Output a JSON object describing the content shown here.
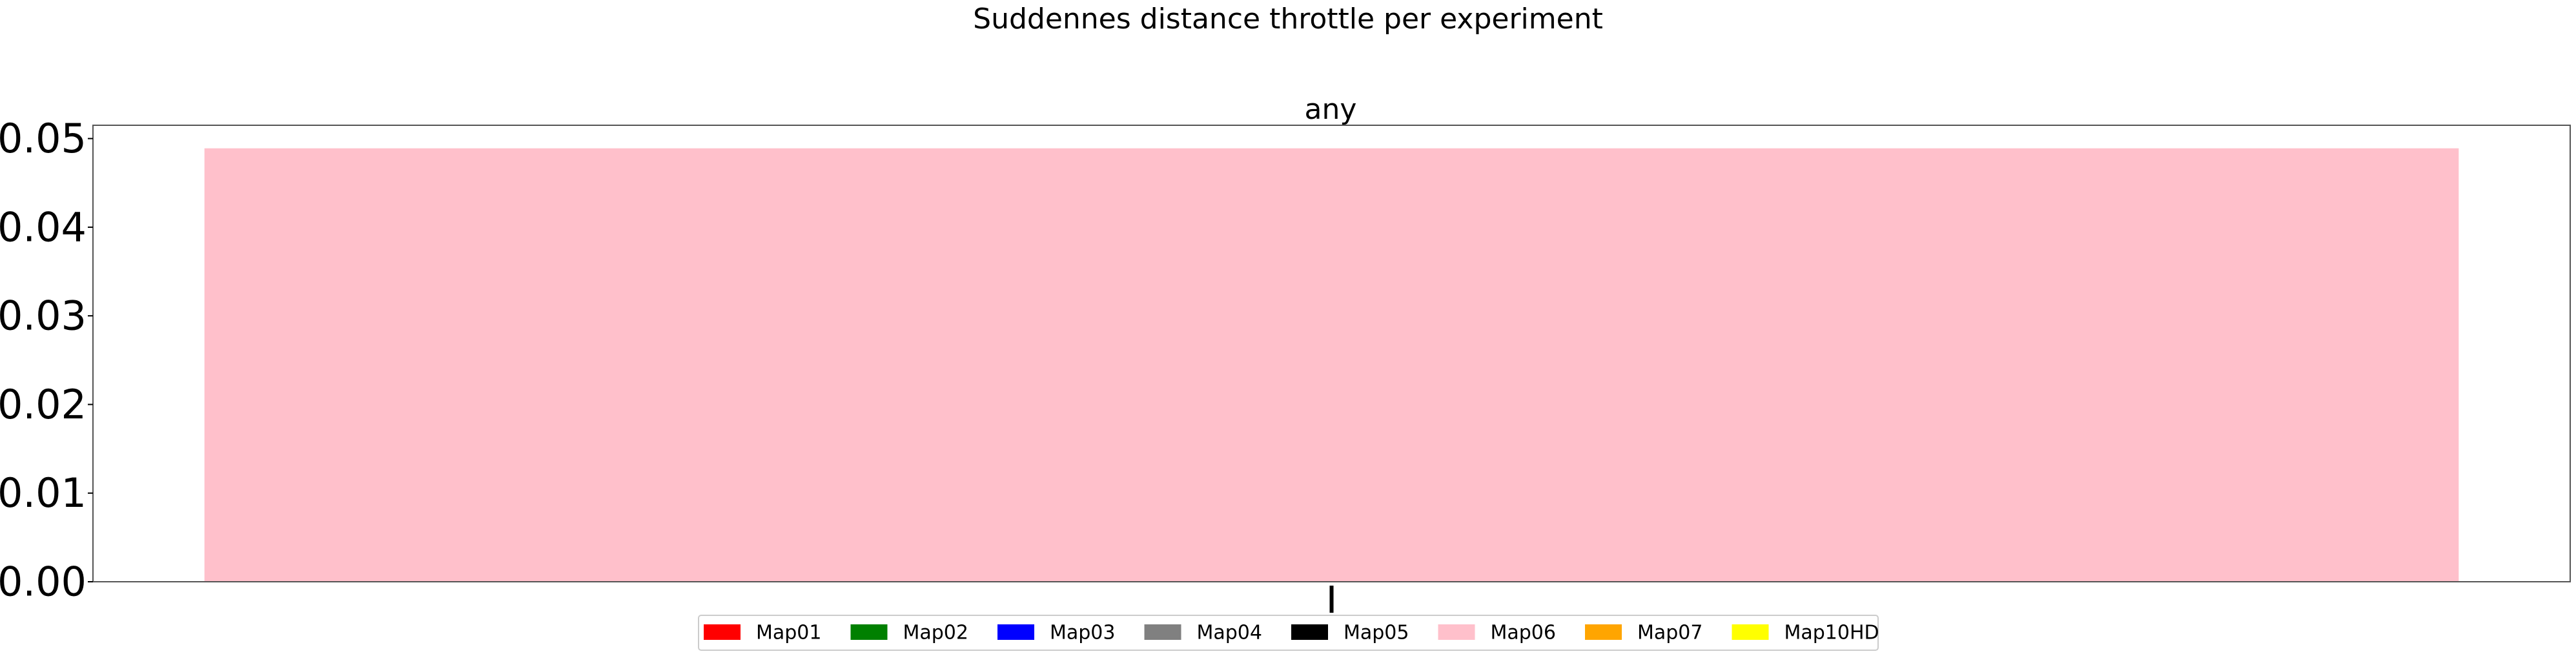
{
  "figure": {
    "suptitle": "Suddennes distance throttle per experiment"
  },
  "chart_data": {
    "type": "bar",
    "title": "any",
    "xlabel": "",
    "ylabel": "",
    "categories": [
      ""
    ],
    "ylim": [
      0,
      0.0515
    ],
    "yticks": [
      "0.00",
      "0.01",
      "0.02",
      "0.03",
      "0.04",
      "0.05"
    ],
    "yticks_values": [
      0,
      0.01,
      0.02,
      0.03,
      0.04,
      0.05
    ],
    "grid": false,
    "series": [
      {
        "name": "Map06",
        "values": [
          0.0489
        ],
        "color": "#ffc0cb"
      }
    ],
    "legend": {
      "placement": "bottom-center",
      "entries": [
        {
          "label": "Map01",
          "color": "#ff0000"
        },
        {
          "label": "Map02",
          "color": "#008000"
        },
        {
          "label": "Map03",
          "color": "#0000ff"
        },
        {
          "label": "Map04",
          "color": "#808080"
        },
        {
          "label": "Map05",
          "color": "#000000"
        },
        {
          "label": "Map06",
          "color": "#ffc0cb"
        },
        {
          "label": "Map07",
          "color": "#ffa500"
        },
        {
          "label": "Map10HD",
          "color": "#ffff00"
        }
      ]
    }
  }
}
